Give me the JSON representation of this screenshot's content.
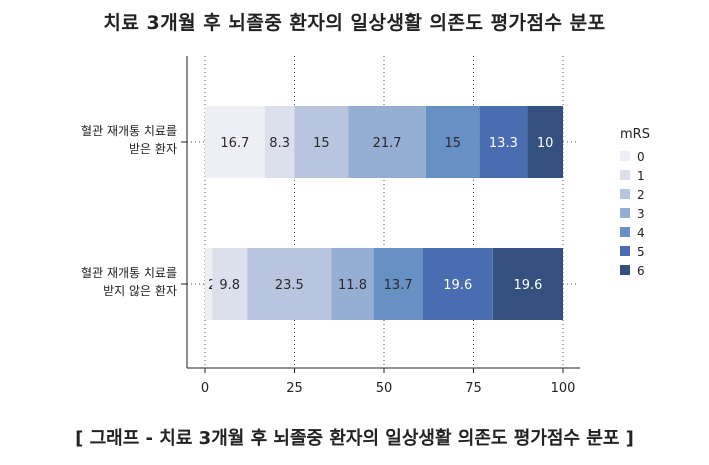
{
  "chart_data": {
    "type": "bar",
    "orientation": "horizontal",
    "stacked": true,
    "title": "치료 3개월 후 뇌졸중 환자의 일상생활 의존도 평가점수 분포",
    "caption": "[ 그래프 - 치료 3개월 후 뇌졸중 환자의 일상생활 의존도 평가점수 분포 ]",
    "categories": [
      {
        "line1": "혈관 재개통 치료를",
        "line2": "받은 환자"
      },
      {
        "line1": "혈관 재개통 치료를",
        "line2": "받지 않은 환자"
      }
    ],
    "legend_title": "mRS",
    "legend_position": "right",
    "series": [
      {
        "name": "0",
        "values": [
          16.7,
          2
        ],
        "labels": [
          "16.7",
          "2"
        ],
        "color": "#eeeef5"
      },
      {
        "name": "1",
        "values": [
          8.3,
          9.8
        ],
        "labels": [
          "8.3",
          "9.8"
        ],
        "color": "#dcdfec"
      },
      {
        "name": "2",
        "values": [
          15,
          23.5
        ],
        "labels": [
          "15",
          "23.5"
        ],
        "color": "#b9c5de"
      },
      {
        "name": "3",
        "values": [
          21.7,
          11.8
        ],
        "labels": [
          "21.7",
          "11.8"
        ],
        "color": "#95aed3"
      },
      {
        "name": "4",
        "values": [
          15,
          13.7
        ],
        "labels": [
          "15",
          "13.7"
        ],
        "color": "#6790c4"
      },
      {
        "name": "5",
        "values": [
          13.3,
          19.6
        ],
        "labels": [
          "13.3",
          "19.6"
        ],
        "color": "#4a6db1"
      },
      {
        "name": "6",
        "values": [
          10,
          19.6
        ],
        "labels": [
          "10",
          "19.6"
        ],
        "color": "#33507f"
      }
    ],
    "xlim": [
      0,
      100
    ],
    "xticks": [
      "0",
      "25",
      "50",
      "75",
      "100"
    ],
    "grid": "dotted vertical"
  }
}
